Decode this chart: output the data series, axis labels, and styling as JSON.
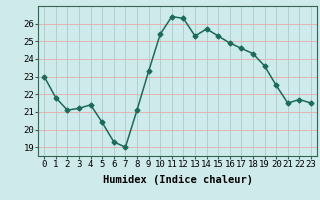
{
  "x": [
    0,
    1,
    2,
    3,
    4,
    5,
    6,
    7,
    8,
    9,
    10,
    11,
    12,
    13,
    14,
    15,
    16,
    17,
    18,
    19,
    20,
    21,
    22,
    23
  ],
  "y": [
    23.0,
    21.8,
    21.1,
    21.2,
    21.4,
    20.4,
    19.3,
    19.0,
    21.1,
    23.3,
    25.4,
    26.4,
    26.3,
    25.3,
    25.7,
    25.3,
    24.9,
    24.6,
    24.3,
    23.6,
    22.5,
    21.5,
    21.7,
    21.5
  ],
  "line_color": "#1a6b5a",
  "marker": "D",
  "marker_size": 2.5,
  "bg_color": "#ceeaea",
  "grid_color_x": "#aacccc",
  "grid_color_y": "#e8aaaa",
  "xlabel": "Humidex (Indice chaleur)",
  "ylim": [
    18.5,
    27.0
  ],
  "xlim": [
    -0.5,
    23.5
  ],
  "yticks": [
    19,
    20,
    21,
    22,
    23,
    24,
    25,
    26
  ],
  "xticks": [
    0,
    1,
    2,
    3,
    4,
    5,
    6,
    7,
    8,
    9,
    10,
    11,
    12,
    13,
    14,
    15,
    16,
    17,
    18,
    19,
    20,
    21,
    22,
    23
  ],
  "xlabel_fontsize": 7.5,
  "tick_fontsize": 6.5,
  "linewidth": 1.1,
  "spine_color": "#336655"
}
